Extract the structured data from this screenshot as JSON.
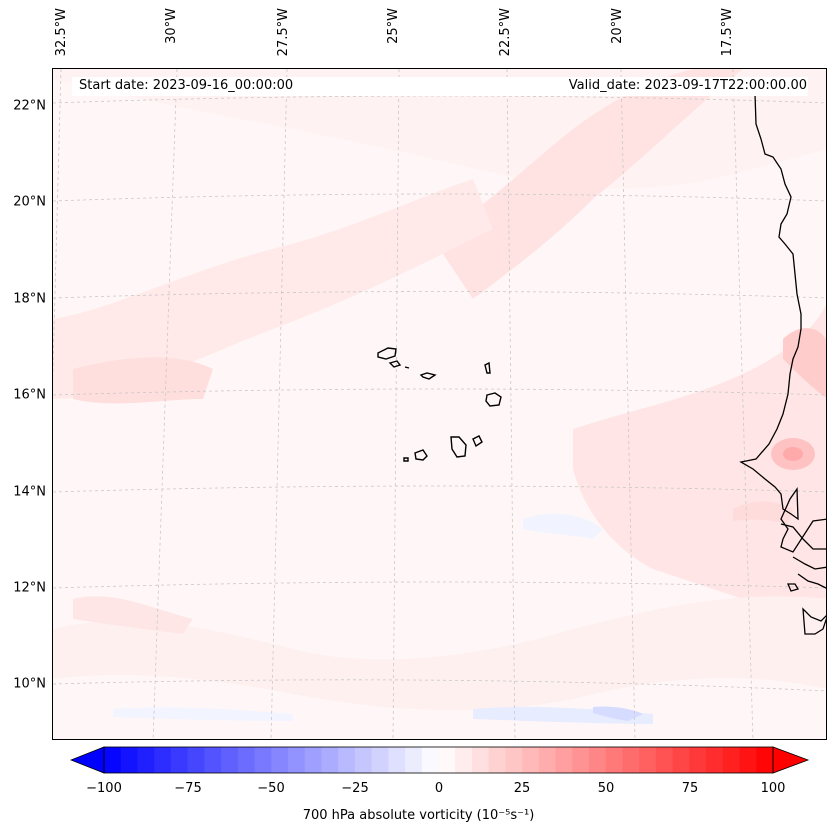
{
  "header": {
    "start_date": "Start date: 2023-09-16_00:00:00",
    "valid_date": "Valid_date: 2023-09-17T22:00:00.00"
  },
  "longitude_labels": [
    "32.5°W",
    "30°W",
    "27.5°W",
    "25°W",
    "22.5°W",
    "20°W",
    "17.5°W"
  ],
  "latitude_labels": [
    "22°N",
    "20°N",
    "18°N",
    "16°N",
    "14°N",
    "12°N",
    "10°N"
  ],
  "colorbar": {
    "ticks": [
      "−100",
      "−75",
      "−50",
      "−25",
      "0",
      "25",
      "50",
      "75",
      "100"
    ],
    "label": "700 hPa absolute vorticity (10⁻⁵s⁻¹)",
    "min": -100,
    "max": 100,
    "levels": 40,
    "low_color": "#0000ff",
    "mid_color": "#ffffff",
    "high_color": "#ff0000"
  },
  "map": {
    "background_color": "#fff7f7",
    "land_outline_color": "#000000",
    "features": [
      "cape-verde-islands",
      "west-africa-coastline"
    ]
  }
}
